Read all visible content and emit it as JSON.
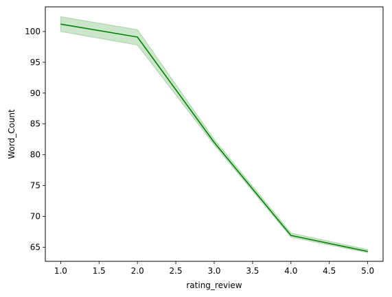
{
  "chart_data": {
    "type": "line",
    "title": "",
    "xlabel": "rating_review",
    "ylabel": "Word_Count",
    "xlim": [
      0.8,
      5.2
    ],
    "ylim": [
      62.7,
      104.0
    ],
    "xticks": [
      1.0,
      1.5,
      2.0,
      2.5,
      3.0,
      3.5,
      4.0,
      4.5,
      5.0
    ],
    "xtick_labels": [
      "1.0",
      "1.5",
      "2.0",
      "2.5",
      "3.0",
      "3.5",
      "4.0",
      "4.5",
      "5.0"
    ],
    "yticks": [
      65,
      70,
      75,
      80,
      85,
      90,
      95,
      100
    ],
    "ytick_labels": [
      "65",
      "70",
      "75",
      "80",
      "85",
      "90",
      "95",
      "100"
    ],
    "grid": false,
    "legend": "none",
    "series": [
      {
        "color": "#008000",
        "x": [
          1,
          2,
          3,
          4,
          5
        ],
        "values": [
          101.2,
          99.1,
          82.0,
          66.9,
          64.3
        ],
        "ci_lower": [
          100.0,
          97.8,
          81.6,
          66.6,
          64.1
        ],
        "ci_upper": [
          102.4,
          100.3,
          82.5,
          67.3,
          64.6
        ],
        "band_color": "#008000",
        "band_opacity": 0.2
      }
    ]
  }
}
